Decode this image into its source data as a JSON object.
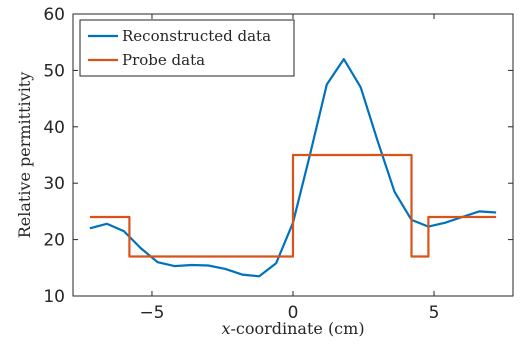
{
  "chart_data": {
    "type": "line",
    "xlabel_var": "x",
    "xlabel_rest": "-coordinate (cm)",
    "ylabel": "Relative permittivity",
    "xlim": [
      -7.8,
      7.8
    ],
    "ylim": [
      10,
      60
    ],
    "xticks": [
      -5,
      0,
      5
    ],
    "xtick_labels": [
      "−5",
      "0",
      "5"
    ],
    "yticks": [
      10,
      20,
      30,
      40,
      50,
      60
    ],
    "ytick_labels": [
      "10",
      "20",
      "30",
      "40",
      "50",
      "60"
    ],
    "grid": false,
    "legend_position": "top-left",
    "series": [
      {
        "name": "Reconstructed data",
        "color": "#0072BD",
        "x": [
          -7.2,
          -6.6,
          -6.0,
          -5.4,
          -4.8,
          -4.2,
          -3.6,
          -3.0,
          -2.4,
          -1.8,
          -1.2,
          -0.6,
          0.0,
          0.6,
          1.2,
          1.8,
          2.4,
          3.0,
          3.6,
          4.2,
          4.8,
          5.4,
          6.0,
          6.6,
          7.2
        ],
        "y": [
          22.0,
          22.8,
          21.5,
          18.5,
          16.0,
          15.3,
          15.5,
          15.4,
          14.8,
          13.8,
          13.5,
          15.8,
          23.0,
          35.0,
          47.5,
          52.0,
          47.0,
          37.5,
          28.5,
          23.5,
          22.3,
          23.0,
          24.0,
          25.0,
          24.8
        ]
      },
      {
        "name": "Probe data",
        "color": "#D95319",
        "x": [
          -7.2,
          -5.8,
          -5.8,
          0.0,
          0.0,
          4.2,
          4.2,
          4.8,
          4.8,
          7.2
        ],
        "y": [
          24,
          24,
          17,
          17,
          35,
          35,
          17,
          17,
          24,
          24
        ]
      }
    ]
  }
}
